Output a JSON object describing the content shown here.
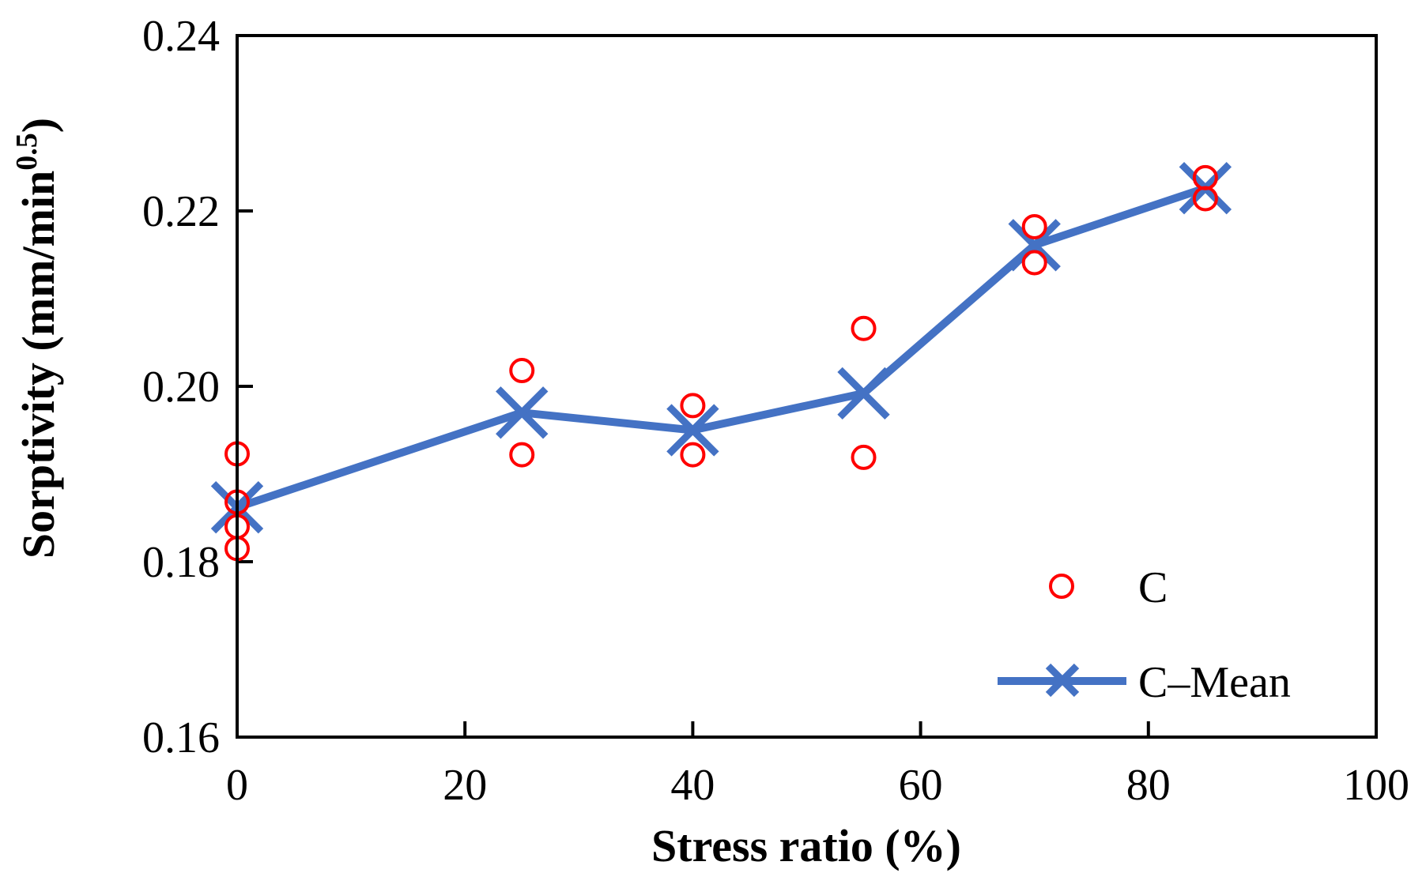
{
  "chart_data": {
    "type": "scatter",
    "title": "",
    "xlabel": "Stress ratio (%)",
    "ylabel": "Sorptivity (mm/min",
    "ylabel_sup": "0.5",
    "ylabel_close": ")",
    "xlim": [
      0,
      100
    ],
    "ylim": [
      0.16,
      0.24
    ],
    "xticks": [
      0,
      20,
      40,
      60,
      80,
      100
    ],
    "xtick_labels": [
      "0",
      "20",
      "40",
      "60",
      "80",
      "100"
    ],
    "yticks": [
      0.16,
      0.18,
      0.2,
      0.22,
      0.24
    ],
    "ytick_labels": [
      "0.16",
      "0.18",
      "0.20",
      "0.22",
      "0.24"
    ],
    "grid": false,
    "legend_position": "bottom-right",
    "series": [
      {
        "name": "C",
        "kind": "scatter",
        "marker": "open-circle",
        "color": "#FF0000",
        "x": [
          0,
          0,
          0,
          0,
          25,
          25,
          40,
          40,
          55,
          55,
          70,
          70,
          85,
          85
        ],
        "y": [
          0.1923,
          0.1868,
          0.184,
          0.1815,
          0.2018,
          0.1922,
          0.1978,
          0.1922,
          0.2066,
          0.1919,
          0.2182,
          0.2141,
          0.2238,
          0.2214
        ]
      },
      {
        "name": "C–Mean",
        "kind": "line",
        "marker": "x",
        "color": "#4472C4",
        "x": [
          0,
          25,
          40,
          55,
          70,
          85
        ],
        "y": [
          0.1862,
          0.197,
          0.195,
          0.1992,
          0.2161,
          0.2226
        ]
      }
    ]
  }
}
